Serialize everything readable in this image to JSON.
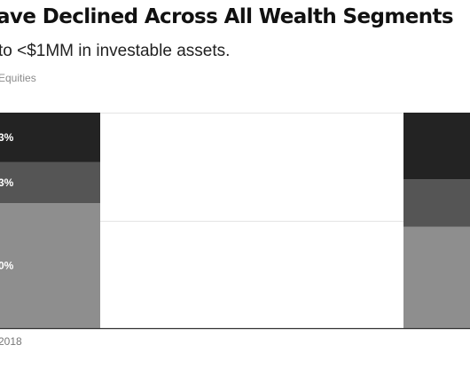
{
  "header": {
    "title": "ave Declined Across All Wealth Segments",
    "subtitle": "to <$1MM in investable assets.",
    "legend_text": "Equities"
  },
  "colors": {
    "segment_bottom": "#8e8e8e",
    "segment_middle": "#555555",
    "segment_top": "#232323",
    "gridline": "#e4e4e4",
    "axis": "#333333"
  },
  "chart_data": {
    "type": "bar",
    "stacked": true,
    "categories": [
      "2018",
      ""
    ],
    "series": [
      {
        "values": [
          58,
          47
        ],
        "label_text": [
          "0%",
          ""
        ]
      },
      {
        "values": [
          19,
          22
        ],
        "label_text": [
          "3%",
          ""
        ]
      },
      {
        "values": [
          23,
          31
        ],
        "label_text": [
          "3%",
          ""
        ]
      }
    ],
    "ylim": [
      0,
      100
    ],
    "gridlines": [
      50,
      100
    ],
    "grid": true
  }
}
